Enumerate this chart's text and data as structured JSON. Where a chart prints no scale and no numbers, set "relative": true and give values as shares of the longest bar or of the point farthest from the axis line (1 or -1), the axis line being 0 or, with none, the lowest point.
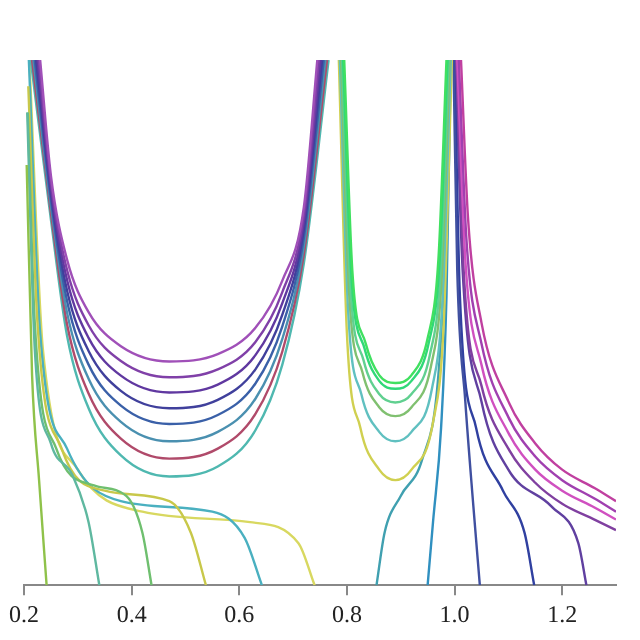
{
  "chart_data": {
    "type": "line",
    "relative": true,
    "xlim": [
      0.2,
      1.3
    ],
    "xticks": [
      0.2,
      0.4,
      0.6,
      0.8,
      {
        "value": 1,
        "label": "1.0"
      },
      1.2
    ],
    "grid": false,
    "legend": false,
    "marker": "none",
    "line_style": "solid",
    "series": [
      {
        "color": "#a050b8",
        "x": [
          0.23,
          0.25,
          0.28,
          0.32,
          0.38,
          0.47,
          0.56,
          0.63,
          0.68,
          0.72,
          0.745
        ],
        "values": [
          1,
          0.78,
          0.62,
          0.52,
          0.455,
          0.426,
          0.44,
          0.49,
          0.58,
          0.72,
          1
        ]
      },
      {
        "color": "#8040a8",
        "x": [
          0.2275,
          0.25,
          0.28,
          0.32,
          0.38,
          0.47,
          0.56,
          0.63,
          0.68,
          0.72,
          0.748
        ],
        "values": [
          1,
          0.768,
          0.6,
          0.495,
          0.427,
          0.396,
          0.411,
          0.463,
          0.558,
          0.705,
          1
        ]
      },
      {
        "color": "#6038a0",
        "x": [
          0.225,
          0.25,
          0.28,
          0.32,
          0.38,
          0.47,
          0.56,
          0.63,
          0.68,
          0.72,
          0.751
        ],
        "values": [
          1,
          0.757,
          0.581,
          0.471,
          0.399,
          0.367,
          0.382,
          0.438,
          0.537,
          0.691,
          1
        ]
      },
      {
        "color": "#40409c",
        "x": [
          0.2225,
          0.25,
          0.28,
          0.32,
          0.38,
          0.47,
          0.56,
          0.63,
          0.68,
          0.72,
          0.754
        ],
        "values": [
          1,
          0.746,
          0.561,
          0.446,
          0.37,
          0.337,
          0.353,
          0.411,
          0.515,
          0.677,
          1
        ]
      },
      {
        "color": "#3a60a8",
        "x": [
          0.22,
          0.25,
          0.28,
          0.32,
          0.38,
          0.47,
          0.56,
          0.63,
          0.68,
          0.72,
          0.757
        ],
        "values": [
          1,
          0.734,
          0.541,
          0.42,
          0.342,
          0.307,
          0.324,
          0.384,
          0.493,
          0.662,
          1
        ]
      },
      {
        "color": "#4a90b0",
        "x": [
          0.2175,
          0.25,
          0.28,
          0.32,
          0.38,
          0.47,
          0.56,
          0.63,
          0.68,
          0.72,
          0.76
        ],
        "values": [
          1,
          0.722,
          0.519,
          0.393,
          0.311,
          0.274,
          0.292,
          0.355,
          0.469,
          0.646,
          1
        ]
      },
      {
        "color": "#b04a6a",
        "x": [
          0.215,
          0.25,
          0.28,
          0.32,
          0.38,
          0.47,
          0.56,
          0.63,
          0.68,
          0.72,
          0.763
        ],
        "values": [
          1,
          0.709,
          0.497,
          0.365,
          0.279,
          0.241,
          0.26,
          0.326,
          0.445,
          0.63,
          1
        ]
      },
      {
        "color": "#4fb8b0",
        "x": [
          0.2125,
          0.25,
          0.28,
          0.32,
          0.38,
          0.47,
          0.56,
          0.63,
          0.68,
          0.72,
          0.766
        ],
        "values": [
          1,
          0.696,
          0.475,
          0.337,
          0.247,
          0.207,
          0.226,
          0.295,
          0.42,
          0.613,
          1
        ]
      },
      {
        "color": "#8fc24a",
        "x": [
          0.205,
          0.215,
          0.228,
          0.242
        ],
        "values": [
          0.8,
          0.4,
          0.2,
          0
        ]
      },
      {
        "color": "#5fb8a0",
        "x": [
          0.206,
          0.22,
          0.25,
          0.29,
          0.32,
          0.34
        ],
        "values": [
          0.9,
          0.45,
          0.27,
          0.21,
          0.12,
          0
        ]
      },
      {
        "color": "#6fbf6f",
        "x": [
          0.207,
          0.22,
          0.26,
          0.33,
          0.39,
          0.42,
          0.437
        ],
        "values": [
          0.9,
          0.5,
          0.26,
          0.19,
          0.17,
          0.1,
          0
        ]
      },
      {
        "color": "#c8c84a",
        "x": [
          0.208,
          0.225,
          0.27,
          0.35,
          0.47,
          0.51,
          0.538
        ],
        "values": [
          0.95,
          0.5,
          0.26,
          0.18,
          0.16,
          0.1,
          0
        ]
      },
      {
        "color": "#4ab0c0",
        "x": [
          0.209,
          0.23,
          0.28,
          0.38,
          0.55,
          0.61,
          0.642
        ],
        "values": [
          1,
          0.48,
          0.26,
          0.16,
          0.14,
          0.09,
          0
        ]
      },
      {
        "color": "#d8d860",
        "x": [
          0.21,
          0.235,
          0.3,
          0.42,
          0.62,
          0.71,
          0.74
        ],
        "values": [
          1,
          0.45,
          0.22,
          0.14,
          0.12,
          0.08,
          0
        ]
      },
      {
        "color": "#40e060",
        "x": [
          0.795,
          0.81,
          0.835,
          0.86,
          0.89,
          0.92,
          0.95,
          0.97,
          0.985
        ],
        "values": [
          1,
          0.6,
          0.46,
          0.4,
          0.385,
          0.4,
          0.47,
          0.62,
          1
        ]
      },
      {
        "color": "#30d878",
        "x": [
          0.793,
          0.808,
          0.833,
          0.86,
          0.89,
          0.92,
          0.952,
          0.972,
          0.987
        ],
        "values": [
          1,
          0.593,
          0.45,
          0.389,
          0.374,
          0.389,
          0.461,
          0.613,
          1
        ]
      },
      {
        "color": "#60d090",
        "x": [
          0.791,
          0.806,
          0.831,
          0.86,
          0.89,
          0.92,
          0.954,
          0.974,
          0.989
        ],
        "values": [
          1,
          0.576,
          0.428,
          0.364,
          0.348,
          0.364,
          0.438,
          0.597,
          1
        ]
      },
      {
        "color": "#80c070",
        "x": [
          0.789,
          0.804,
          0.829,
          0.86,
          0.89,
          0.92,
          0.956,
          0.976,
          0.991
        ],
        "values": [
          1,
          0.559,
          0.405,
          0.339,
          0.322,
          0.339,
          0.416,
          0.581,
          1
        ]
      },
      {
        "color": "#60c0c0",
        "x": [
          0.787,
          0.802,
          0.827,
          0.86,
          0.89,
          0.92,
          0.958,
          0.978,
          0.993
        ],
        "values": [
          1,
          0.528,
          0.363,
          0.292,
          0.274,
          0.292,
          0.374,
          0.551,
          1
        ]
      },
      {
        "color": "#d0d050",
        "x": [
          0.785,
          0.8,
          0.825,
          0.86,
          0.89,
          0.92,
          0.96,
          0.98,
          0.995
        ],
        "values": [
          1,
          0.48,
          0.3,
          0.22,
          0.2,
          0.22,
          0.31,
          0.5,
          1
        ]
      },
      {
        "color": "#c040a0",
        "x": [
          1.012,
          1.025,
          1.05,
          1.1,
          1.15,
          1.2,
          1.26,
          1.3
        ],
        "values": [
          1,
          0.7,
          0.5,
          0.35,
          0.27,
          0.22,
          0.185,
          0.16
        ]
      },
      {
        "color": "#a040b0",
        "x": [
          1.008,
          1.022,
          1.05,
          1.1,
          1.15,
          1.2,
          1.26,
          1.3
        ],
        "values": [
          1,
          0.66,
          0.46,
          0.32,
          0.245,
          0.2,
          0.165,
          0.14
        ]
      },
      {
        "color": "#d050c0",
        "x": [
          1.005,
          1.02,
          1.05,
          1.1,
          1.15,
          1.2,
          1.26,
          1.3
        ],
        "values": [
          1,
          0.62,
          0.42,
          0.29,
          0.22,
          0.18,
          0.148,
          0.125
        ]
      },
      {
        "color": "#8040a0",
        "x": [
          1.003,
          1.018,
          1.05,
          1.1,
          1.15,
          1.2,
          1.26,
          1.3
        ],
        "values": [
          1,
          0.58,
          0.38,
          0.26,
          0.195,
          0.155,
          0.125,
          0.105
        ]
      },
      {
        "color": "#40a0b0",
        "x": [
          0.855,
          0.87,
          0.9,
          0.94,
          0.97,
          0.985,
          0.992
        ],
        "values": [
          0,
          0.1,
          0.17,
          0.24,
          0.4,
          0.7,
          1
        ]
      },
      {
        "color": "#3090c0",
        "x": [
          0.95,
          0.96,
          0.975,
          0.985,
          0.993
        ],
        "values": [
          0,
          0.12,
          0.3,
          0.55,
          1
        ]
      },
      {
        "color": "#4050a0",
        "x": [
          0.998,
          1.005,
          1.02,
          1.035,
          1.047
        ],
        "values": [
          1,
          0.6,
          0.35,
          0.15,
          0
        ]
      },
      {
        "color": "#3040a0",
        "x": [
          1.0,
          1.01,
          1.04,
          1.09,
          1.13,
          1.148
        ],
        "values": [
          1,
          0.55,
          0.3,
          0.18,
          0.1,
          0
        ]
      },
      {
        "color": "#6040a0",
        "x": [
          1.002,
          1.015,
          1.05,
          1.1,
          1.18,
          1.23,
          1.245
        ],
        "values": [
          1,
          0.6,
          0.35,
          0.22,
          0.15,
          0.08,
          0
        ]
      }
    ]
  }
}
